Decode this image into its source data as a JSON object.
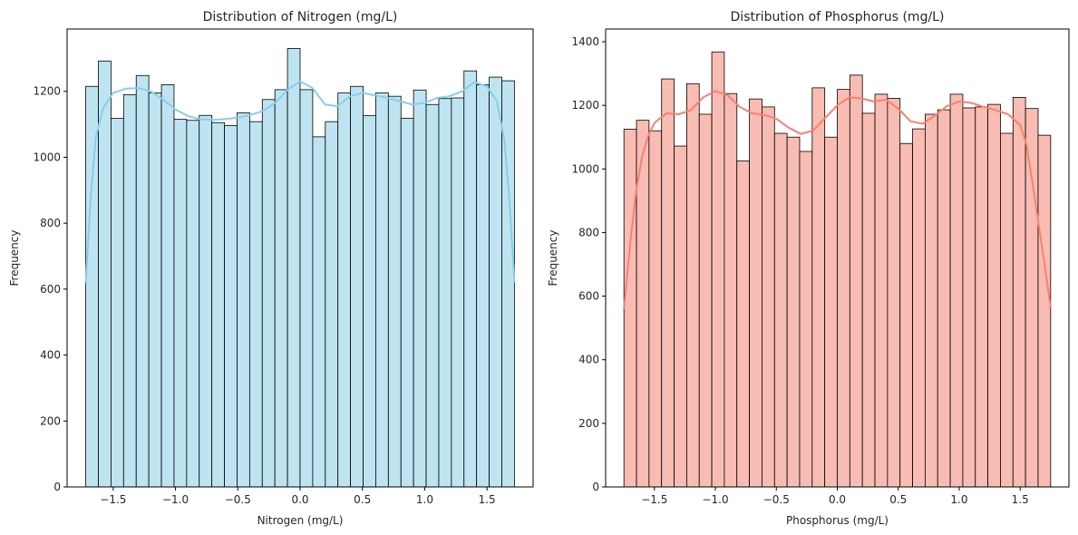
{
  "chart_data": [
    {
      "type": "bar",
      "subtype": "histogram_with_kde",
      "title": "Distribution of Nitrogen (mg/L)",
      "xlabel": "Nitrogen (mg/L)",
      "ylabel": "Frequency",
      "xlim": [
        -1.87,
        1.87
      ],
      "ylim": [
        0,
        1389
      ],
      "xticks": [
        -1.5,
        -1.0,
        -0.5,
        0.0,
        0.5,
        1.0,
        1.5
      ],
      "xtick_labels": [
        "−1.5",
        "−1.0",
        "−0.5",
        "0.0",
        "0.5",
        "1.0",
        "1.5"
      ],
      "yticks": [
        0,
        200,
        400,
        600,
        800,
        1000,
        1200
      ],
      "ytick_labels": [
        "0",
        "200",
        "400",
        "600",
        "800",
        "1000",
        "1200"
      ],
      "bin_range": [
        -1.72,
        1.72
      ],
      "values": [
        1215,
        1292,
        1118,
        1190,
        1248,
        1195,
        1220,
        1115,
        1112,
        1127,
        1105,
        1096,
        1135,
        1108,
        1175,
        1205,
        1330,
        1205,
        1062,
        1108,
        1195,
        1215,
        1126,
        1195,
        1185,
        1118,
        1204,
        1160,
        1178,
        1180,
        1262,
        1220,
        1243,
        1232
      ],
      "kde": {
        "x": [
          -1.72,
          -1.68,
          -1.64,
          -1.58,
          -1.5,
          -1.4,
          -1.3,
          -1.2,
          -1.1,
          -1.0,
          -0.9,
          -0.8,
          -0.7,
          -0.6,
          -0.5,
          -0.4,
          -0.3,
          -0.2,
          -0.1,
          0.0,
          0.1,
          0.2,
          0.3,
          0.4,
          0.5,
          0.6,
          0.7,
          0.8,
          0.9,
          1.0,
          1.1,
          1.2,
          1.3,
          1.4,
          1.5,
          1.58,
          1.64,
          1.68,
          1.72
        ],
        "y": [
          620,
          880,
          1060,
          1150,
          1195,
          1208,
          1210,
          1200,
          1175,
          1145,
          1125,
          1115,
          1113,
          1116,
          1120,
          1128,
          1140,
          1165,
          1205,
          1230,
          1210,
          1160,
          1155,
          1185,
          1195,
          1188,
          1180,
          1170,
          1160,
          1165,
          1180,
          1185,
          1200,
          1228,
          1215,
          1170,
          1050,
          870,
          620
        ]
      },
      "color": "#87ceeb",
      "bar_fill": "#bfe4f1",
      "bar_edge": "#000000",
      "grid": false,
      "legend": "none"
    },
    {
      "type": "bar",
      "subtype": "histogram_with_kde",
      "title": "Distribution of Phosphorus (mg/L)",
      "xlabel": "Phosphorus (mg/L)",
      "ylabel": "Frequency",
      "xlim": [
        -1.9,
        1.9
      ],
      "ylim": [
        0,
        1440
      ],
      "xticks": [
        -1.5,
        -1.0,
        -0.5,
        0.0,
        0.5,
        1.0,
        1.5
      ],
      "xtick_labels": [
        "−1.5",
        "−1.0",
        "−0.5",
        "0.0",
        "0.5",
        "1.0",
        "1.5"
      ],
      "yticks": [
        0,
        200,
        400,
        600,
        800,
        1000,
        1200,
        1400
      ],
      "ytick_labels": [
        "0",
        "200",
        "400",
        "600",
        "800",
        "1000",
        "1200",
        "1400"
      ],
      "bin_range": [
        -1.75,
        1.75
      ],
      "values": [
        1125,
        1153,
        1120,
        1283,
        1072,
        1268,
        1172,
        1368,
        1237,
        1025,
        1220,
        1195,
        1112,
        1100,
        1055,
        1255,
        1100,
        1250,
        1295,
        1175,
        1235,
        1222,
        1080,
        1126,
        1172,
        1186,
        1235,
        1192,
        1195,
        1203,
        1112,
        1225,
        1190,
        1106
      ],
      "kde": {
        "x": [
          -1.75,
          -1.7,
          -1.65,
          -1.6,
          -1.55,
          -1.5,
          -1.4,
          -1.3,
          -1.2,
          -1.1,
          -1.0,
          -0.9,
          -0.8,
          -0.7,
          -0.6,
          -0.5,
          -0.4,
          -0.3,
          -0.2,
          -0.1,
          0.0,
          0.1,
          0.2,
          0.3,
          0.4,
          0.5,
          0.6,
          0.7,
          0.8,
          0.9,
          1.0,
          1.1,
          1.2,
          1.3,
          1.4,
          1.5,
          1.55,
          1.6,
          1.65,
          1.7,
          1.75
        ],
        "y": [
          560,
          760,
          930,
          1040,
          1105,
          1145,
          1175,
          1172,
          1185,
          1225,
          1245,
          1232,
          1195,
          1175,
          1170,
          1158,
          1130,
          1110,
          1120,
          1160,
          1200,
          1225,
          1222,
          1212,
          1218,
          1190,
          1150,
          1142,
          1168,
          1198,
          1212,
          1208,
          1195,
          1185,
          1172,
          1138,
          1080,
          960,
          830,
          700,
          565
        ]
      },
      "color": "#fa8072",
      "bar_fill": "#f9bcb3",
      "bar_edge": "#000000",
      "grid": false,
      "legend": "none"
    }
  ]
}
